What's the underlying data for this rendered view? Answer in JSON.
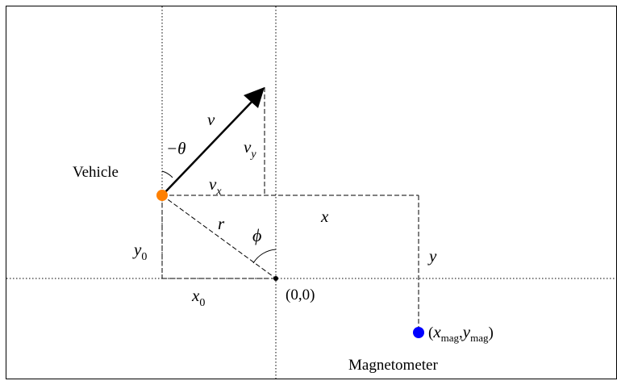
{
  "labels": {
    "vehicle": "Vehicle",
    "magnetometer": "Magnetometer",
    "origin": "(0,0)",
    "v": "v",
    "neg_theta": "−θ",
    "vy_base": "v",
    "vy_sub": "y",
    "vx_base": "v",
    "vx_sub": "x",
    "x": "x",
    "r": "r",
    "phi": "ϕ",
    "y0_base": "y",
    "y0_sub": "0",
    "x0_base": "x",
    "x0_sub": "0",
    "y": "y",
    "mag_open": "(",
    "mag_x": "x",
    "mag_x_sub": "mag",
    "mag_comma": ",",
    "mag_y": "y",
    "mag_y_sub": "mag",
    "mag_close": ")"
  },
  "colors": {
    "vehicle": "#ff8000",
    "magnetometer": "#0000ff",
    "lines": "#000000"
  }
}
